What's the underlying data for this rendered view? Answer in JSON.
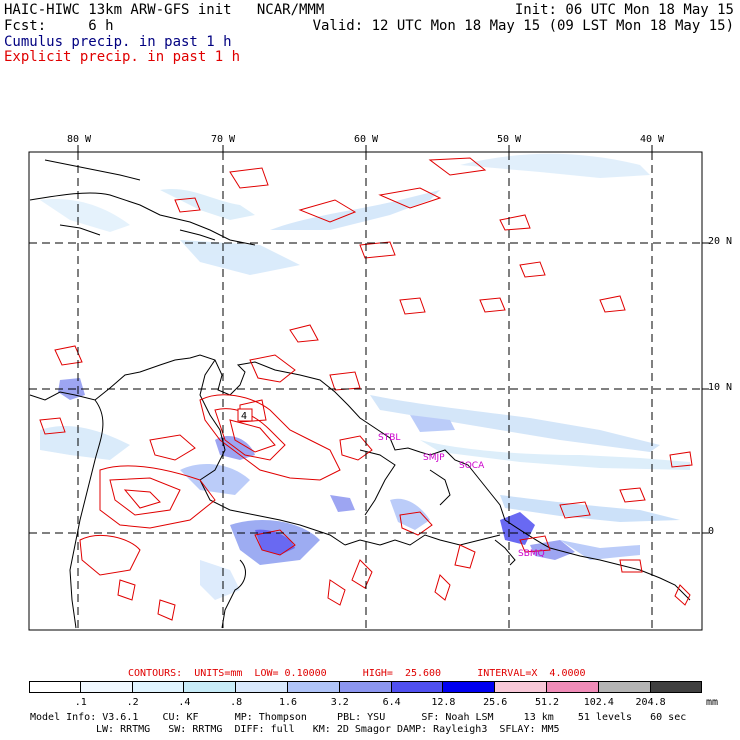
{
  "header": {
    "line1_left": "HAIC-HIWC 13km ARW-GFS init   NCAR/MMM",
    "line1_right": "Init: 06 UTC Mon 18 May 15",
    "line2_left": "Fcst:     6 h",
    "line2_right": "Valid: 12 UTC Mon 18 May 15 (09 LST Mon 18 May 15)",
    "line3": "Cumulus precip. in past 1 h",
    "line4": "Explicit precip. in past 1 h",
    "line3_color": "#000080",
    "line4_color": "#e00000"
  },
  "map": {
    "lon_labels": [
      "80 W",
      "70 W",
      "60 W",
      "50 W",
      "40 W"
    ],
    "lat_labels": [
      "20 N",
      "10 N",
      "0"
    ],
    "station_labels": [
      "STBL",
      "SMJP",
      "SOCA",
      "SBMQ"
    ],
    "station_color": "#cc00cc",
    "contour_box_label": "4"
  },
  "legend": {
    "contours_line": "CONTOURS:  UNITS=mm  LOW= 0.10000      HIGH=  25.600      INTERVAL=X  4.0000",
    "contours_color": "#e00000",
    "colors": [
      "#ffffff",
      "#f0f8ff",
      "#e0f4ff",
      "#c8ecf8",
      "#d8e8fc",
      "#b0c4f8",
      "#8c96f0",
      "#5050f0",
      "#0000f0",
      "#f8c8d8",
      "#f08cb8",
      "#b4b4b4",
      "#404040",
      "#d8a8f8"
    ],
    "labels": [
      ".1",
      ".2",
      ".4",
      ".8",
      "1.6",
      "3.2",
      "6.4",
      "12.8",
      "25.6",
      "51.2",
      "102.4",
      "204.8"
    ],
    "units": "mm"
  },
  "footer": {
    "line1": "Model Info: V3.6.1    CU: KF      MP: Thompson     PBL: YSU      SF: Noah LSM     13 km    51 levels   60 sec",
    "line2": "LW: RRTMG   SW: RRTMG  DIFF: full   KM: 2D Smagor DAMP: Rayleigh3  SFLAY: MM5"
  }
}
